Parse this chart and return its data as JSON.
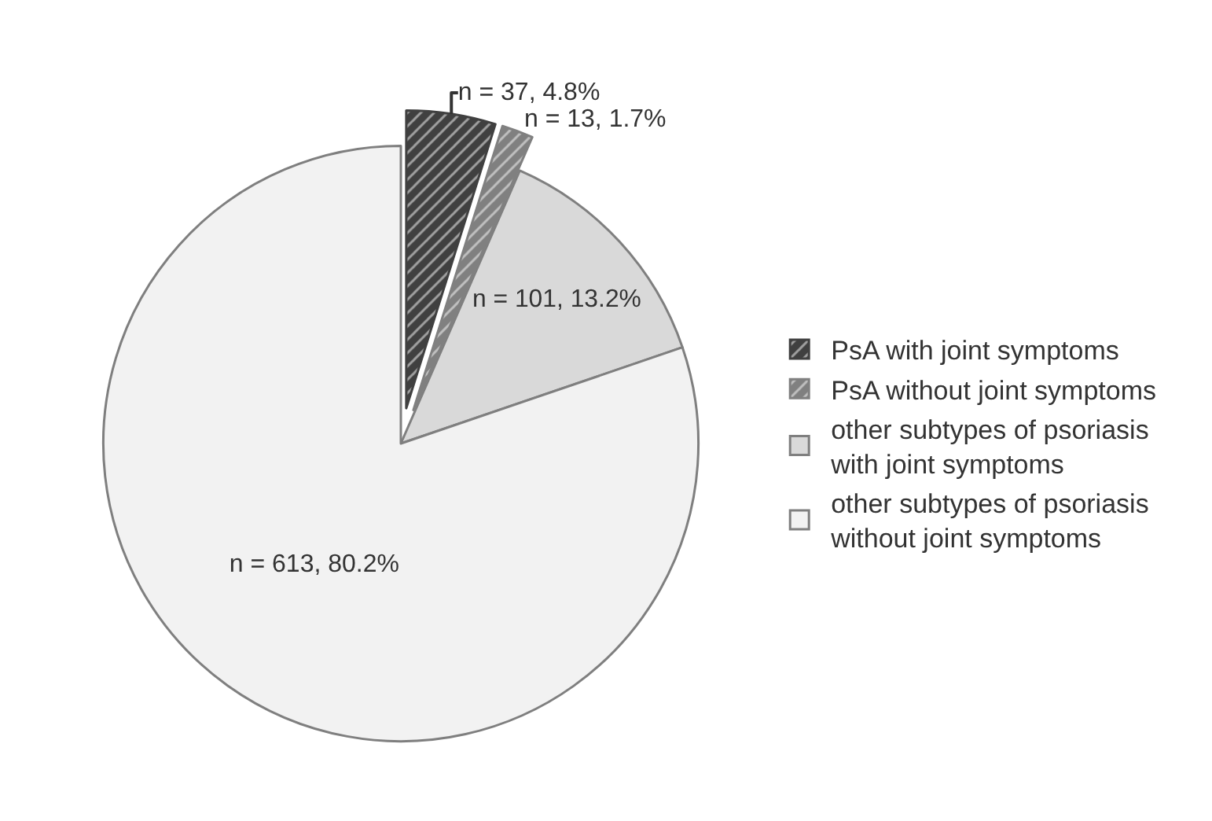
{
  "chart_data": {
    "type": "pie",
    "categories": [
      "PsA with joint symptoms",
      "PsA without joint symptoms",
      "other subtypes of psoriasis with joint symptoms",
      "other subtypes of psoriasis without joint symptoms"
    ],
    "values": [
      37,
      13,
      101,
      613
    ],
    "value_labels": [
      "n = 37, 4.8%",
      "n = 13, 1.7%",
      "n = 101, 13.2%",
      "n = 613, 80.2%"
    ],
    "colors": [
      "#404040",
      "#808080",
      "#d9d9d9",
      "#f2f2f2"
    ],
    "legend": "right"
  }
}
